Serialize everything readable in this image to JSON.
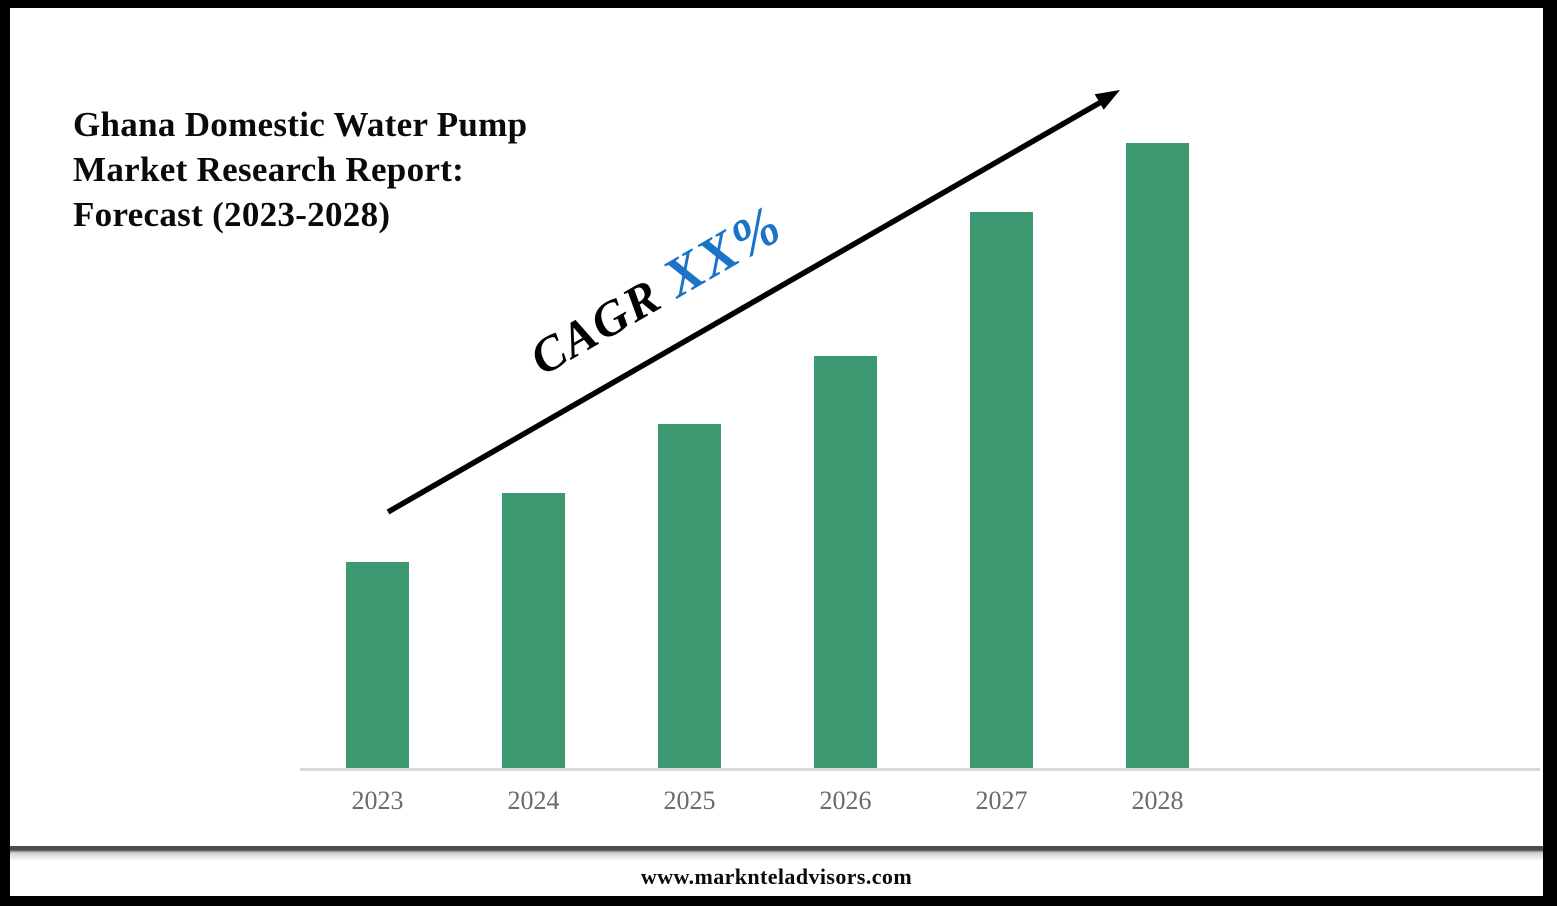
{
  "title": {
    "lines": [
      "Ghana Domestic Water Pump",
      "Market Research Report:",
      "Forecast (2023-2028)"
    ]
  },
  "annotation": {
    "label": "CAGR ",
    "value": "XX%",
    "label_color": "#000000",
    "value_color": "#1B73C8"
  },
  "footer": {
    "website": "www.marknteladvisors.com"
  },
  "chart_data": {
    "type": "bar",
    "title": "Ghana Domestic Water Pump Market Research Report: Forecast (2023-2028)",
    "categories": [
      "2023",
      "2024",
      "2025",
      "2026",
      "2027",
      "2028"
    ],
    "values": [
      33,
      44,
      55,
      66,
      89,
      100
    ],
    "xlabel": "",
    "ylabel": "",
    "ylim": [
      0,
      100
    ],
    "grid": false,
    "legend": false,
    "y_axis_visible": false,
    "annotation": "CAGR XX% (trend arrow rising left-to-right)",
    "bar_color": "#3D9972",
    "axis_line_color": "#D9D9D9",
    "tick_label_color": "#6B6B6B",
    "arrow_color": "#000000"
  }
}
